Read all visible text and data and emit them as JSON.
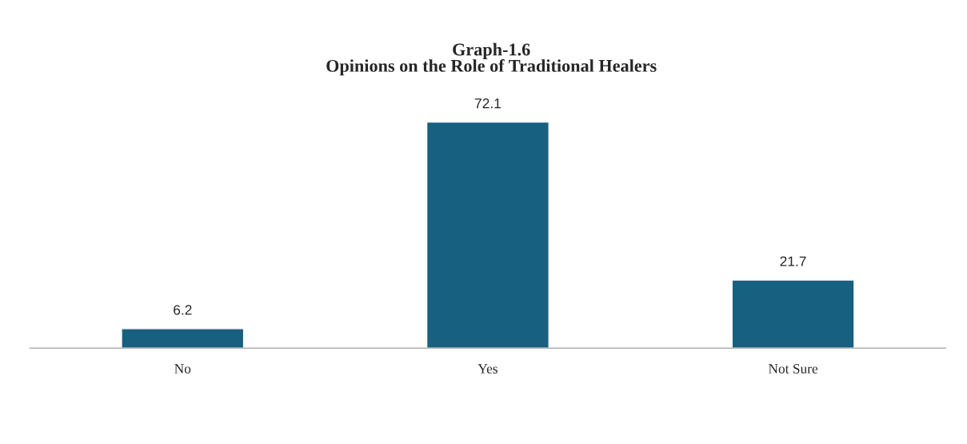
{
  "chart_data": {
    "type": "bar",
    "title": "Graph-1.6\nOpinions on the Role of Traditional Healers",
    "categories": [
      "No",
      "Yes",
      "Not Sure"
    ],
    "values": [
      6.2,
      72.1,
      21.7
    ],
    "color": "#17607f",
    "data_labels": true,
    "grid": false
  }
}
